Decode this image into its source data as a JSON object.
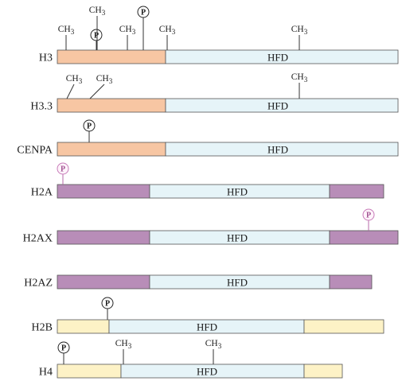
{
  "colors": {
    "tail_orange": "#f7c6a3",
    "hfd_blue": "#e6f4f8",
    "tail_purple": "#b88db8",
    "tail_yellow": "#fdf2c6",
    "mark_pink": "#c77ab8"
  },
  "hfd_label": "HFD",
  "mods": {
    "methyl": "CH3",
    "methyl_sub": "3",
    "methyl_base": "CH",
    "phospho": "P"
  },
  "histones": [
    {
      "name": "H3",
      "color": "tail_orange"
    },
    {
      "name": "H3.3",
      "color": "tail_orange"
    },
    {
      "name": "CENPA",
      "color": "tail_orange"
    },
    {
      "name": "H2A",
      "color": "tail_purple"
    },
    {
      "name": "H2AX",
      "color": "tail_purple"
    },
    {
      "name": "H2AZ",
      "color": "tail_purple"
    },
    {
      "name": "H2B",
      "color": "tail_yellow"
    },
    {
      "name": "H4",
      "color": "tail_yellow"
    }
  ]
}
